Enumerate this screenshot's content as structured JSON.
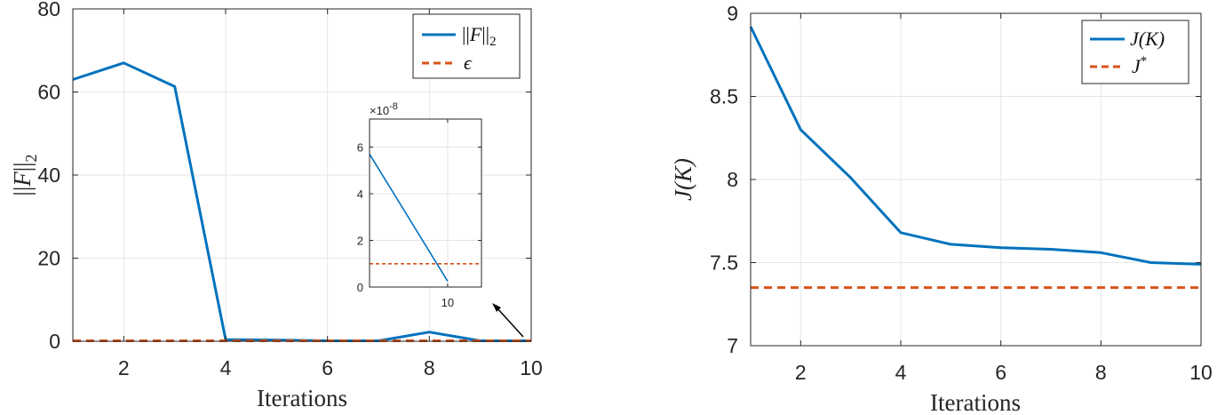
{
  "chart_data": [
    {
      "type": "line",
      "ylabel": "||F||2",
      "ylabel_parts": {
        "bars_open": "||",
        "symbol": "F",
        "bars_close": "||",
        "sub": "2"
      },
      "xlabel": "Iterations",
      "xlim": [
        1,
        10
      ],
      "ylim": [
        0,
        80
      ],
      "xticks": [
        2,
        4,
        6,
        8,
        10
      ],
      "yticks": [
        0,
        20,
        40,
        60,
        80
      ],
      "grid": true,
      "legend_placement": "top-right",
      "series": [
        {
          "name": "||F||2",
          "legend_parts": {
            "bars_open": "||",
            "symbol": "F",
            "bars_close": "||",
            "sub": "2"
          },
          "color": "#0072BD",
          "style": "solid",
          "x": [
            1,
            2,
            3,
            4,
            5,
            6,
            7,
            8,
            9,
            10
          ],
          "y": [
            63,
            67,
            61.3,
            0.4,
            0.3,
            0.1,
            0.1,
            2.2,
            0.1,
            0.1
          ]
        },
        {
          "name": "ϵ",
          "color": "#D95319",
          "style": "dashed",
          "x": [
            1,
            10
          ],
          "y": [
            0.1,
            0.1
          ]
        }
      ],
      "inset": {
        "exponent_label": "×10-8",
        "exponent_parts": {
          "base": "×10",
          "exp": "-8"
        },
        "xlim": [
          7,
          11.3
        ],
        "ylim": [
          0,
          7.2
        ],
        "xticks": [
          10
        ],
        "yticks": [
          0,
          2,
          4,
          6
        ],
        "series": [
          {
            "color": "#0072BD",
            "style": "solid",
            "x": [
              7,
              10
            ],
            "y": [
              5.7,
              0.25
            ]
          },
          {
            "color": "#D95319",
            "style": "dashed",
            "x": [
              7,
              11.3
            ],
            "y": [
              1.0,
              1.0
            ]
          }
        ]
      }
    },
    {
      "type": "line",
      "ylabel": "J(K)",
      "xlabel": "Iterations",
      "xlim": [
        1,
        10
      ],
      "ylim": [
        7,
        9
      ],
      "xticks": [
        2,
        4,
        6,
        8,
        10
      ],
      "yticks": [
        7,
        7.5,
        8,
        8.5,
        9
      ],
      "grid": true,
      "legend_placement": "top-right",
      "series": [
        {
          "name": "J(K)",
          "color": "#0072BD",
          "style": "solid",
          "x": [
            1,
            2,
            3,
            4,
            5,
            6,
            7,
            8,
            9,
            10
          ],
          "y": [
            8.92,
            8.3,
            8.01,
            7.68,
            7.61,
            7.59,
            7.58,
            7.56,
            7.5,
            7.49
          ]
        },
        {
          "name": "J*",
          "legend_parts": {
            "symbol": "J",
            "sup": "*"
          },
          "color": "#D95319",
          "style": "dashed",
          "x": [
            1,
            10
          ],
          "y": [
            7.35,
            7.35
          ]
        }
      ]
    }
  ]
}
